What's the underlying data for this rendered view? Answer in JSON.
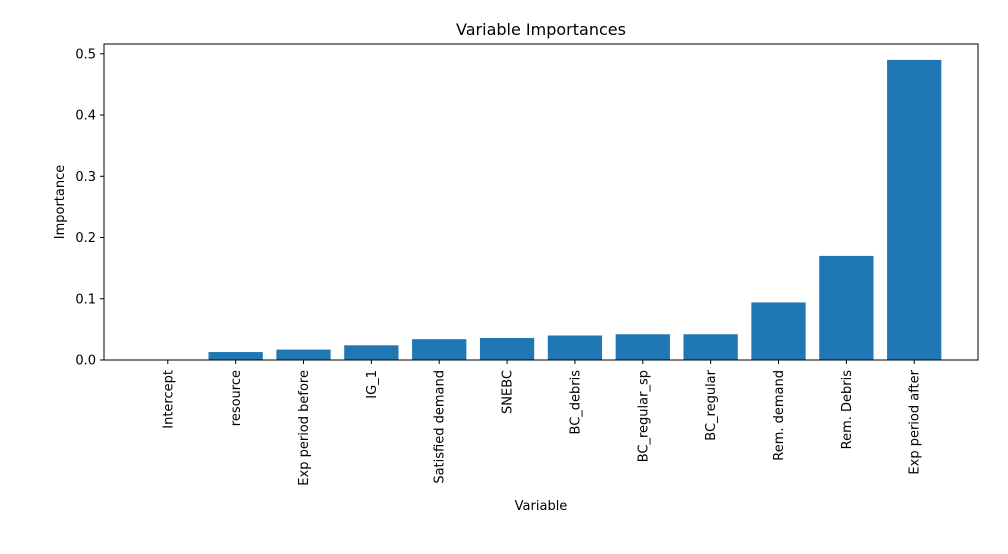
{
  "chart_data": {
    "type": "bar",
    "title": "Variable Importances",
    "xlabel": "Variable",
    "ylabel": "Importance",
    "categories": [
      "Intercept",
      "resource",
      "Exp period before",
      "IG_1",
      "Satisfied demand",
      "SNEBC",
      "BC_debris",
      "BC_regular_sp",
      "BC_regular",
      "Rem. demand",
      "Rem. Debris",
      "Exp period after"
    ],
    "values": [
      0.0,
      0.013,
      0.017,
      0.024,
      0.034,
      0.036,
      0.04,
      0.042,
      0.042,
      0.094,
      0.17,
      0.49
    ],
    "ylim": [
      0,
      0.516
    ],
    "yticks": [
      0.0,
      0.1,
      0.2,
      0.3,
      0.4,
      0.5
    ],
    "ytick_labels": [
      "0.0",
      "0.1",
      "0.2",
      "0.3",
      "0.4",
      "0.5"
    ],
    "grid": false,
    "legend": "none",
    "bar_color": "#1f77b4"
  }
}
